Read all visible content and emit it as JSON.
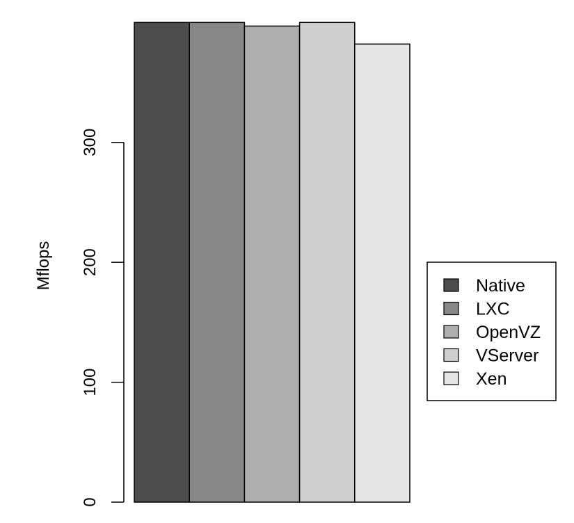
{
  "chart_data": {
    "type": "bar",
    "title": "",
    "xlabel": "",
    "ylabel": "Mflops",
    "ylim": [
      0,
      400
    ],
    "yticks": [
      0,
      100,
      200,
      300
    ],
    "categories": [
      "Native",
      "LXC",
      "OpenVZ",
      "VServer",
      "Xen"
    ],
    "values": [
      400,
      400,
      397,
      400,
      382
    ],
    "colors": [
      "#4d4d4d",
      "#878787",
      "#aeaeae",
      "#cfcfcf",
      "#e6e6e6"
    ],
    "legend": {
      "position": "right",
      "entries": [
        "Native",
        "LXC",
        "OpenVZ",
        "VServer",
        "Xen"
      ]
    },
    "grid": false
  }
}
